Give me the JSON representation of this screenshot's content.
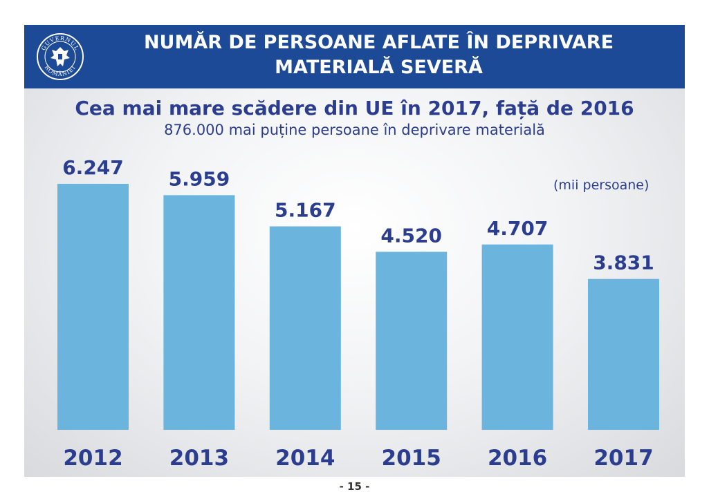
{
  "header": {
    "title_line1": "NUMĂR DE PERSOANE AFLATE ÎN DEPRIVARE",
    "title_line2": "MATERIALĂ SEVERĂ",
    "logo_text_top": "GUVERNUL",
    "logo_text_bottom": "ROMÂNIEI"
  },
  "subtitle": "Cea mai mare scădere din UE în 2017, față de 2016",
  "subtitle2": "876.000 mai puține persoane în deprivare materială",
  "unit_label": "(mii persoane)",
  "page_number": "- 15 -",
  "colors": {
    "header_bg": "#1d4a96",
    "bar": "#6ab4de",
    "text_dark_blue": "#2b3d8f"
  },
  "chart_data": {
    "type": "bar",
    "categories": [
      "2012",
      "2013",
      "2014",
      "2015",
      "2016",
      "2017"
    ],
    "values": [
      6247,
      5959,
      5167,
      4520,
      4707,
      3831
    ],
    "value_labels": [
      "6.247",
      "5.959",
      "5.167",
      "4.520",
      "4.707",
      "3.831"
    ],
    "ylabel": "(mii persoane)",
    "ylim": [
      0,
      6247
    ],
    "grid": false,
    "legend": "none"
  }
}
